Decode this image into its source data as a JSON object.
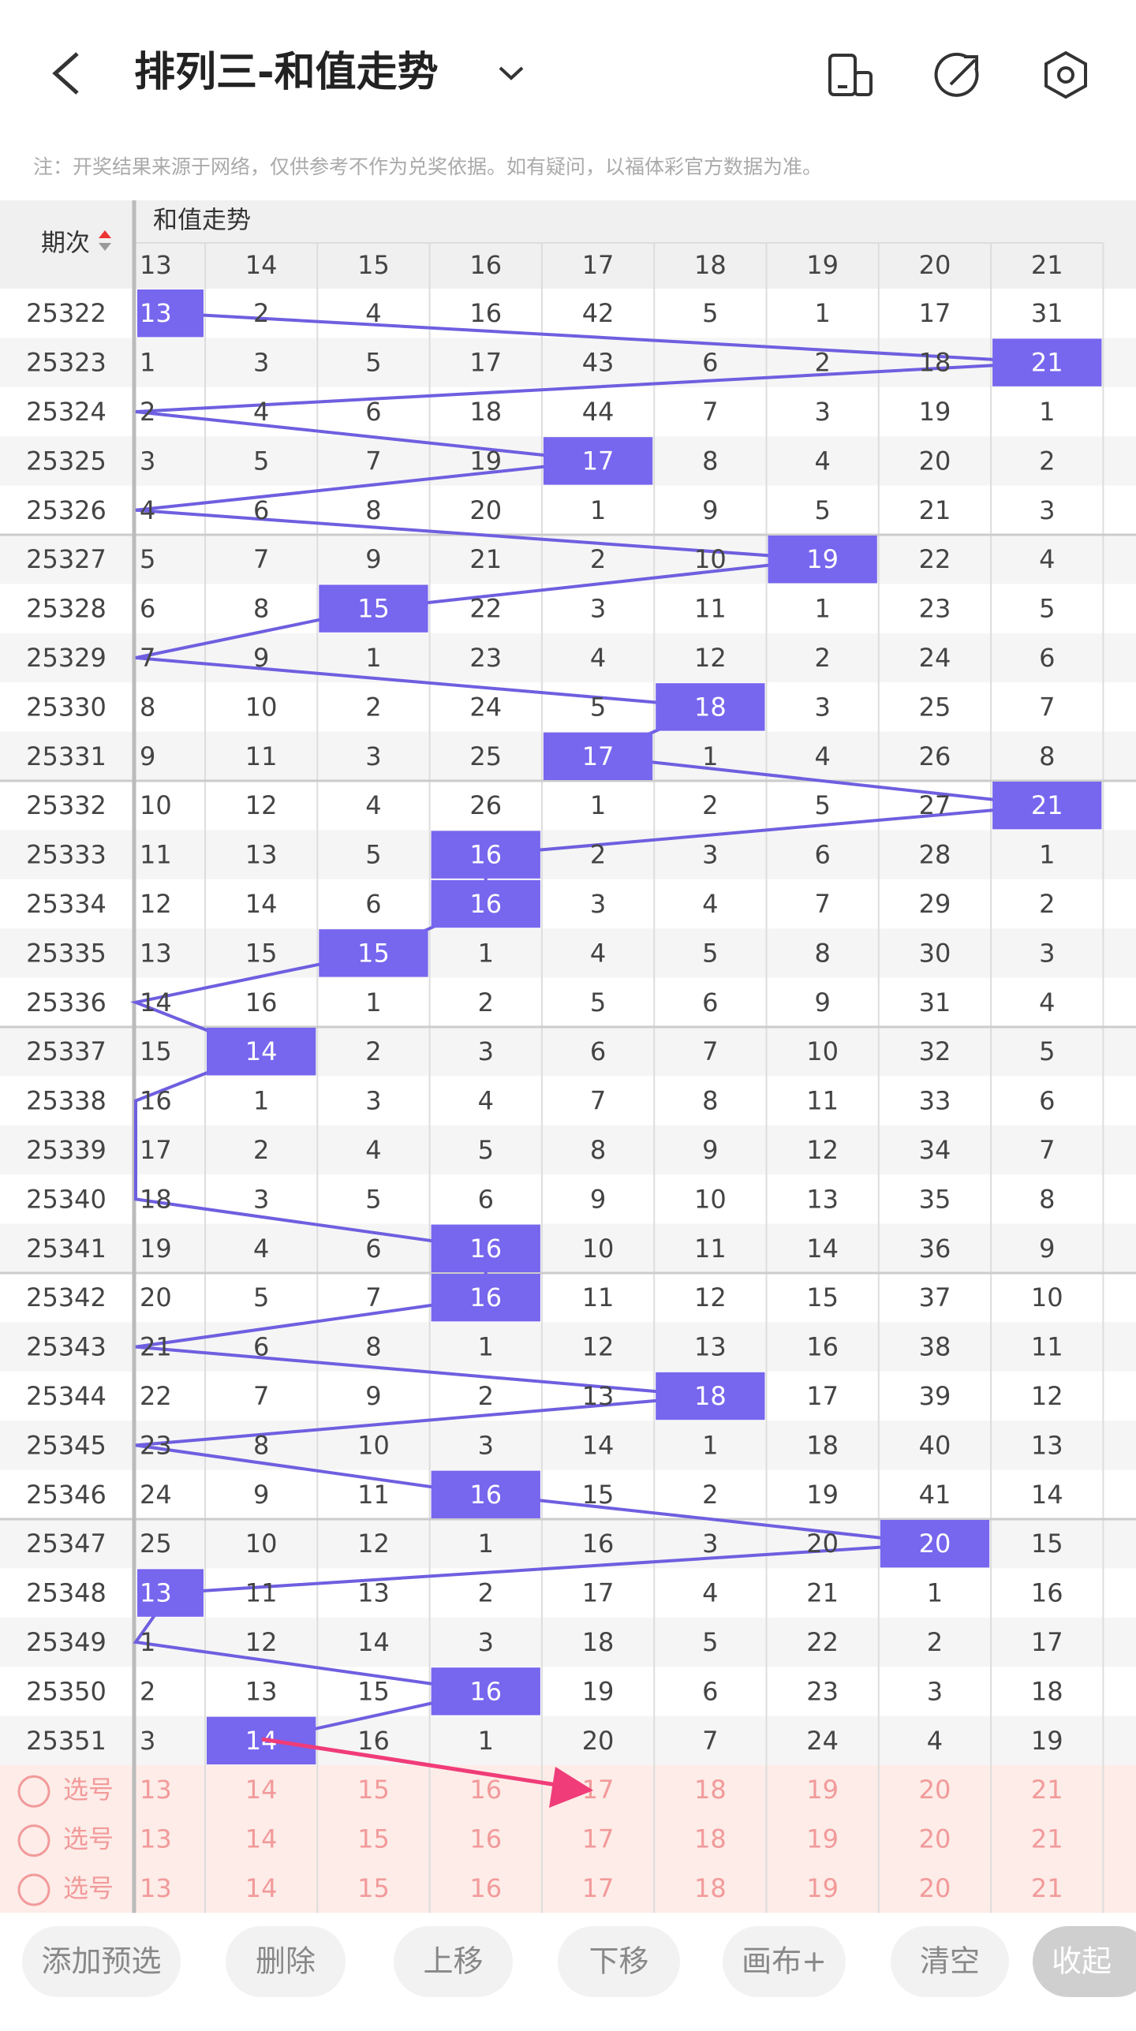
{
  "header": {
    "title": "排列三-和值走势"
  },
  "notice": "注：开奖结果来源于网络，仅供参考不作为兑奖依据。如有疑问，以福体彩官方数据为准。",
  "table": {
    "period_header": "期次",
    "group_header": "和值走势",
    "columns": [
      13,
      14,
      15,
      16,
      17,
      18,
      19,
      20,
      21
    ],
    "rows": [
      {
        "period": "25322",
        "cells": [
          13,
          2,
          4,
          16,
          42,
          5,
          1,
          17,
          31
        ],
        "hit_col": 0
      },
      {
        "period": "25323",
        "cells": [
          1,
          3,
          5,
          17,
          43,
          6,
          2,
          18,
          21
        ],
        "hit_col": 8
      },
      {
        "period": "25324",
        "cells": [
          2,
          4,
          6,
          18,
          44,
          7,
          3,
          19,
          1
        ],
        "hit_col": null
      },
      {
        "period": "25325",
        "cells": [
          3,
          5,
          7,
          19,
          17,
          8,
          4,
          20,
          2
        ],
        "hit_col": 4
      },
      {
        "period": "25326",
        "cells": [
          4,
          6,
          8,
          20,
          1,
          9,
          5,
          21,
          3
        ],
        "hit_col": null
      },
      {
        "period": "25327",
        "cells": [
          5,
          7,
          9,
          21,
          2,
          10,
          19,
          22,
          4
        ],
        "hit_col": 6
      },
      {
        "period": "25328",
        "cells": [
          6,
          8,
          15,
          22,
          3,
          11,
          1,
          23,
          5
        ],
        "hit_col": 2
      },
      {
        "period": "25329",
        "cells": [
          7,
          9,
          1,
          23,
          4,
          12,
          2,
          24,
          6
        ],
        "hit_col": null
      },
      {
        "period": "25330",
        "cells": [
          8,
          10,
          2,
          24,
          5,
          18,
          3,
          25,
          7
        ],
        "hit_col": 5
      },
      {
        "period": "25331",
        "cells": [
          9,
          11,
          3,
          25,
          17,
          1,
          4,
          26,
          8
        ],
        "hit_col": 4
      },
      {
        "period": "25332",
        "cells": [
          10,
          12,
          4,
          26,
          1,
          2,
          5,
          27,
          21
        ],
        "hit_col": 8
      },
      {
        "period": "25333",
        "cells": [
          11,
          13,
          5,
          16,
          2,
          3,
          6,
          28,
          1
        ],
        "hit_col": 3
      },
      {
        "period": "25334",
        "cells": [
          12,
          14,
          6,
          16,
          3,
          4,
          7,
          29,
          2
        ],
        "hit_col": 3
      },
      {
        "period": "25335",
        "cells": [
          13,
          15,
          15,
          1,
          4,
          5,
          8,
          30,
          3
        ],
        "hit_col": 2
      },
      {
        "period": "25336",
        "cells": [
          14,
          16,
          1,
          2,
          5,
          6,
          9,
          31,
          4
        ],
        "hit_col": null
      },
      {
        "period": "25337",
        "cells": [
          15,
          14,
          2,
          3,
          6,
          7,
          10,
          32,
          5
        ],
        "hit_col": 1
      },
      {
        "period": "25338",
        "cells": [
          16,
          1,
          3,
          4,
          7,
          8,
          11,
          33,
          6
        ],
        "hit_col": null
      },
      {
        "period": "25339",
        "cells": [
          17,
          2,
          4,
          5,
          8,
          9,
          12,
          34,
          7
        ],
        "hit_col": null
      },
      {
        "period": "25340",
        "cells": [
          18,
          3,
          5,
          6,
          9,
          10,
          13,
          35,
          8
        ],
        "hit_col": null
      },
      {
        "period": "25341",
        "cells": [
          19,
          4,
          6,
          16,
          10,
          11,
          14,
          36,
          9
        ],
        "hit_col": 3
      },
      {
        "period": "25342",
        "cells": [
          20,
          5,
          7,
          16,
          11,
          12,
          15,
          37,
          10
        ],
        "hit_col": 3
      },
      {
        "period": "25343",
        "cells": [
          21,
          6,
          8,
          1,
          12,
          13,
          16,
          38,
          11
        ],
        "hit_col": null
      },
      {
        "period": "25344",
        "cells": [
          22,
          7,
          9,
          2,
          13,
          18,
          17,
          39,
          12
        ],
        "hit_col": 5
      },
      {
        "period": "25345",
        "cells": [
          23,
          8,
          10,
          3,
          14,
          1,
          18,
          40,
          13
        ],
        "hit_col": null
      },
      {
        "period": "25346",
        "cells": [
          24,
          9,
          11,
          16,
          15,
          2,
          19,
          41,
          14
        ],
        "hit_col": 3
      },
      {
        "period": "25347",
        "cells": [
          25,
          10,
          12,
          1,
          16,
          3,
          20,
          20,
          15
        ],
        "hit_col": 7
      },
      {
        "period": "25348",
        "cells": [
          13,
          11,
          13,
          2,
          17,
          4,
          21,
          1,
          16
        ],
        "hit_col": 0
      },
      {
        "period": "25349",
        "cells": [
          1,
          12,
          14,
          3,
          18,
          5,
          22,
          2,
          17
        ],
        "hit_col": null
      },
      {
        "period": "25350",
        "cells": [
          2,
          13,
          15,
          16,
          19,
          6,
          23,
          3,
          18
        ],
        "hit_col": 3
      },
      {
        "period": "25351",
        "cells": [
          3,
          14,
          16,
          1,
          20,
          7,
          24,
          4,
          19
        ],
        "hit_col": 1
      }
    ]
  },
  "select_rows": [
    {
      "label": "选号"
    },
    {
      "label": "选号"
    },
    {
      "label": "选号"
    }
  ],
  "buttons": [
    "添加预选",
    "删除",
    "上移",
    "下移",
    "画布+",
    "清空",
    "收起"
  ]
}
